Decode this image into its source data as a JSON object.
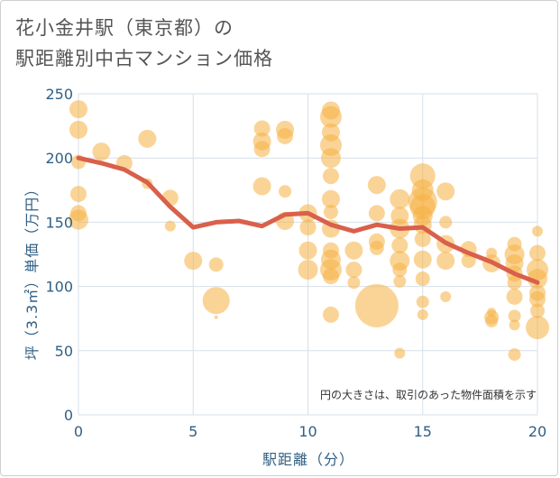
{
  "title_lines": [
    "花小金井駅（東京都）の",
    "駅距離別中古マンション価格"
  ],
  "chart_data": {
    "type": "scatter",
    "title": "花小金井駅（東京都）の駅距離別中古マンション価格",
    "xlabel": "駅距離（分）",
    "ylabel": "坪（3.3㎡）単価（万円）",
    "xlim": [
      0,
      20
    ],
    "ylim": [
      0,
      250
    ],
    "xticks": [
      0,
      5,
      10,
      15,
      20
    ],
    "yticks": [
      0,
      50,
      100,
      150,
      200,
      250
    ],
    "grid": true,
    "note": "円の大きさは、取引のあった物件面積を示す",
    "colors": {
      "bubble": "#f5b041",
      "trend": "#d9604a",
      "grid": "#d6dfe8",
      "text": "#2f5f85"
    },
    "points": [
      [
        0,
        238,
        10
      ],
      [
        0,
        222,
        10
      ],
      [
        0,
        197,
        8
      ],
      [
        0,
        172,
        9
      ],
      [
        0,
        157,
        9
      ],
      [
        0,
        152,
        11
      ],
      [
        1,
        205,
        10
      ],
      [
        2,
        196,
        9
      ],
      [
        3,
        215,
        10
      ],
      [
        3,
        180,
        6
      ],
      [
        4,
        169,
        9
      ],
      [
        4,
        147,
        6
      ],
      [
        5,
        120,
        10
      ],
      [
        6,
        117,
        8
      ],
      [
        6,
        89,
        15
      ],
      [
        6,
        76,
        2
      ],
      [
        8,
        223,
        9
      ],
      [
        8,
        213,
        10
      ],
      [
        8,
        207,
        9
      ],
      [
        8,
        178,
        10
      ],
      [
        9,
        222,
        10
      ],
      [
        9,
        217,
        9
      ],
      [
        9,
        174,
        7
      ],
      [
        9,
        151,
        10
      ],
      [
        10,
        157,
        10
      ],
      [
        10,
        146,
        9
      ],
      [
        10,
        128,
        10
      ],
      [
        10,
        113,
        11
      ],
      [
        11,
        237,
        10
      ],
      [
        11,
        232,
        12
      ],
      [
        11,
        220,
        10
      ],
      [
        11,
        210,
        12
      ],
      [
        11,
        200,
        11
      ],
      [
        11,
        186,
        9
      ],
      [
        11,
        168,
        10
      ],
      [
        11,
        158,
        8
      ],
      [
        11,
        145,
        10
      ],
      [
        11,
        128,
        9
      ],
      [
        11,
        121,
        11
      ],
      [
        11,
        113,
        12
      ],
      [
        11,
        108,
        9
      ],
      [
        11,
        78,
        9
      ],
      [
        12,
        128,
        10
      ],
      [
        12,
        113,
        9
      ],
      [
        12,
        103,
        7
      ],
      [
        13,
        179,
        10
      ],
      [
        13,
        157,
        9
      ],
      [
        13,
        135,
        9
      ],
      [
        13,
        130,
        8
      ],
      [
        13,
        85,
        24
      ],
      [
        14,
        168,
        11
      ],
      [
        14,
        155,
        10
      ],
      [
        14,
        145,
        11
      ],
      [
        14,
        132,
        9
      ],
      [
        14,
        120,
        11
      ],
      [
        14,
        113,
        8
      ],
      [
        14,
        104,
        7
      ],
      [
        14,
        48,
        6
      ],
      [
        15,
        186,
        14
      ],
      [
        15,
        175,
        12
      ],
      [
        15,
        166,
        16
      ],
      [
        15,
        162,
        14
      ],
      [
        15,
        155,
        11
      ],
      [
        15,
        148,
        10
      ],
      [
        15,
        137,
        9
      ],
      [
        15,
        121,
        10
      ],
      [
        15,
        106,
        8
      ],
      [
        15,
        88,
        7
      ],
      [
        15,
        78,
        6
      ],
      [
        16,
        174,
        10
      ],
      [
        16,
        150,
        7
      ],
      [
        16,
        133,
        10
      ],
      [
        16,
        120,
        10
      ],
      [
        16,
        92,
        6
      ],
      [
        17,
        129,
        9
      ],
      [
        17,
        120,
        8
      ],
      [
        18,
        126,
        6
      ],
      [
        18,
        118,
        10
      ],
      [
        18,
        80,
        5
      ],
      [
        18,
        76,
        8
      ],
      [
        18,
        73,
        7
      ],
      [
        19,
        133,
        8
      ],
      [
        19,
        125,
        11
      ],
      [
        19,
        118,
        10
      ],
      [
        19,
        110,
        9
      ],
      [
        19,
        103,
        8
      ],
      [
        19,
        92,
        9
      ],
      [
        19,
        77,
        7
      ],
      [
        19,
        70,
        6
      ],
      [
        19,
        47,
        7
      ],
      [
        20,
        143,
        6
      ],
      [
        20,
        126,
        9
      ],
      [
        20,
        113,
        12
      ],
      [
        20,
        106,
        11
      ],
      [
        20,
        95,
        9
      ],
      [
        20,
        90,
        9
      ],
      [
        20,
        81,
        8
      ],
      [
        20,
        68,
        13
      ]
    ],
    "trend": [
      [
        0,
        200
      ],
      [
        1,
        196
      ],
      [
        2,
        191
      ],
      [
        3,
        181
      ],
      [
        4,
        162
      ],
      [
        5,
        146
      ],
      [
        6,
        150
      ],
      [
        7,
        151
      ],
      [
        8,
        147
      ],
      [
        9,
        156
      ],
      [
        10,
        157
      ],
      [
        11,
        148
      ],
      [
        12,
        143
      ],
      [
        13,
        148
      ],
      [
        14,
        145
      ],
      [
        15,
        146
      ],
      [
        16,
        134
      ],
      [
        17,
        126
      ],
      [
        18,
        119
      ],
      [
        19,
        110
      ],
      [
        20,
        103
      ]
    ]
  }
}
